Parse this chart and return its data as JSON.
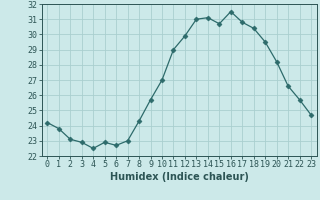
{
  "x": [
    0,
    1,
    2,
    3,
    4,
    5,
    6,
    7,
    8,
    9,
    10,
    11,
    12,
    13,
    14,
    15,
    16,
    17,
    18,
    19,
    20,
    21,
    22,
    23
  ],
  "y": [
    24.2,
    23.8,
    23.1,
    22.9,
    22.5,
    22.9,
    22.7,
    23.0,
    24.3,
    25.7,
    27.0,
    29.0,
    29.9,
    31.0,
    31.1,
    30.7,
    31.5,
    30.8,
    30.4,
    29.5,
    28.2,
    26.6,
    25.7,
    24.7
  ],
  "xlabel": "Humidex (Indice chaleur)",
  "ylim": [
    22,
    32
  ],
  "xlim": [
    -0.5,
    23.5
  ],
  "yticks": [
    22,
    23,
    24,
    25,
    26,
    27,
    28,
    29,
    30,
    31,
    32
  ],
  "xtick_labels": [
    "0",
    "1",
    "2",
    "3",
    "4",
    "5",
    "6",
    "7",
    "8",
    "9",
    "10",
    "11",
    "12",
    "13",
    "14",
    "15",
    "16",
    "17",
    "18",
    "19",
    "20",
    "21",
    "22",
    "23"
  ],
  "line_color": "#2d6b6b",
  "marker": "D",
  "marker_size": 2.5,
  "background_color": "#cce9e9",
  "grid_color": "#aacfcf",
  "font_color": "#2d5555",
  "tick_fontsize": 6.0,
  "xlabel_fontsize": 7.0
}
